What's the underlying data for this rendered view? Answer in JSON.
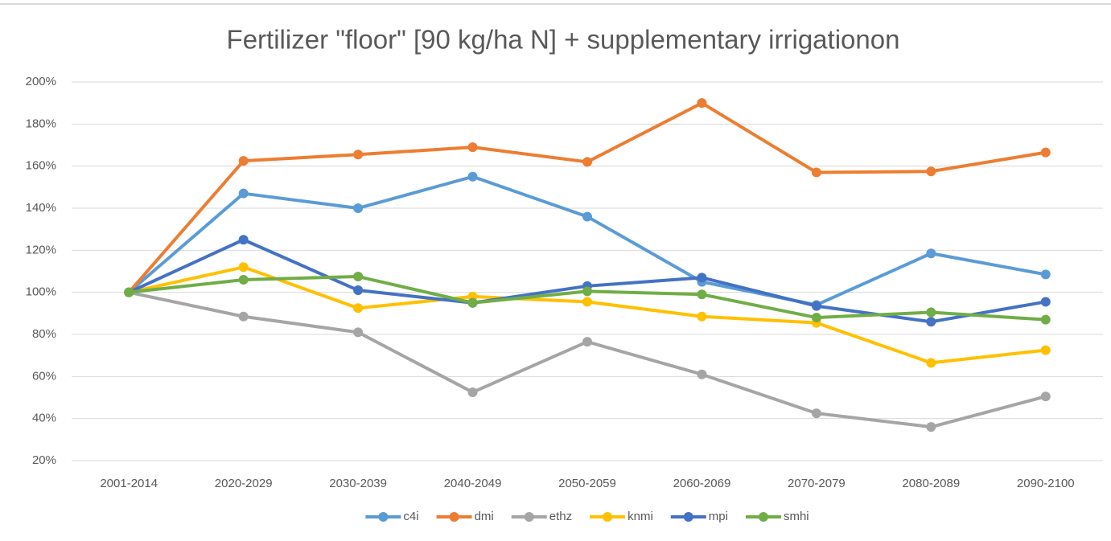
{
  "chart_data": {
    "type": "line",
    "title": "Fertilizer \"floor\" [90 kg/ha N] + supplementary irrigationon",
    "categories": [
      "2001-2014",
      "2020-2029",
      "2030-2039",
      "2040-2049",
      "2050-2059",
      "2060-2069",
      "2070-2079",
      "2080-2089",
      "2090-2100"
    ],
    "series": [
      {
        "name": "c4i",
        "color": "#5b9bd5",
        "values": [
          100,
          147,
          140,
          155,
          136,
          105,
          94,
          118.5,
          108.5
        ]
      },
      {
        "name": "dmi",
        "color": "#ed7d31",
        "values": [
          100,
          162.5,
          165.5,
          169,
          162,
          190,
          157,
          157.5,
          166.5
        ]
      },
      {
        "name": "ethz",
        "color": "#a5a5a5",
        "values": [
          100,
          88.5,
          81,
          52.5,
          76.5,
          61,
          42.5,
          36,
          50.5
        ]
      },
      {
        "name": "knmi",
        "color": "#ffc000",
        "values": [
          100,
          112,
          92.5,
          98,
          95.5,
          88.5,
          85.5,
          66.5,
          72.5
        ]
      },
      {
        "name": "mpi",
        "color": "#4472c4",
        "values": [
          100,
          125,
          101,
          95,
          103,
          107,
          93.5,
          86,
          95.5
        ]
      },
      {
        "name": "smhi",
        "color": "#70ad47",
        "values": [
          100,
          106,
          107.5,
          95,
          100.5,
          99,
          88,
          90.5,
          87
        ]
      }
    ],
    "ylim": [
      20,
      200
    ],
    "yticks": [
      {
        "value": 20,
        "label": "20%"
      },
      {
        "value": 40,
        "label": "40%"
      },
      {
        "value": 60,
        "label": "60%"
      },
      {
        "value": 80,
        "label": "80%"
      },
      {
        "value": 100,
        "label": "100%"
      },
      {
        "value": 120,
        "label": "120%"
      },
      {
        "value": 140,
        "label": "140%"
      },
      {
        "value": 160,
        "label": "160%"
      },
      {
        "value": 180,
        "label": "180%"
      },
      {
        "value": 200,
        "label": "200%"
      }
    ],
    "grid": true,
    "legend": "bottom"
  }
}
